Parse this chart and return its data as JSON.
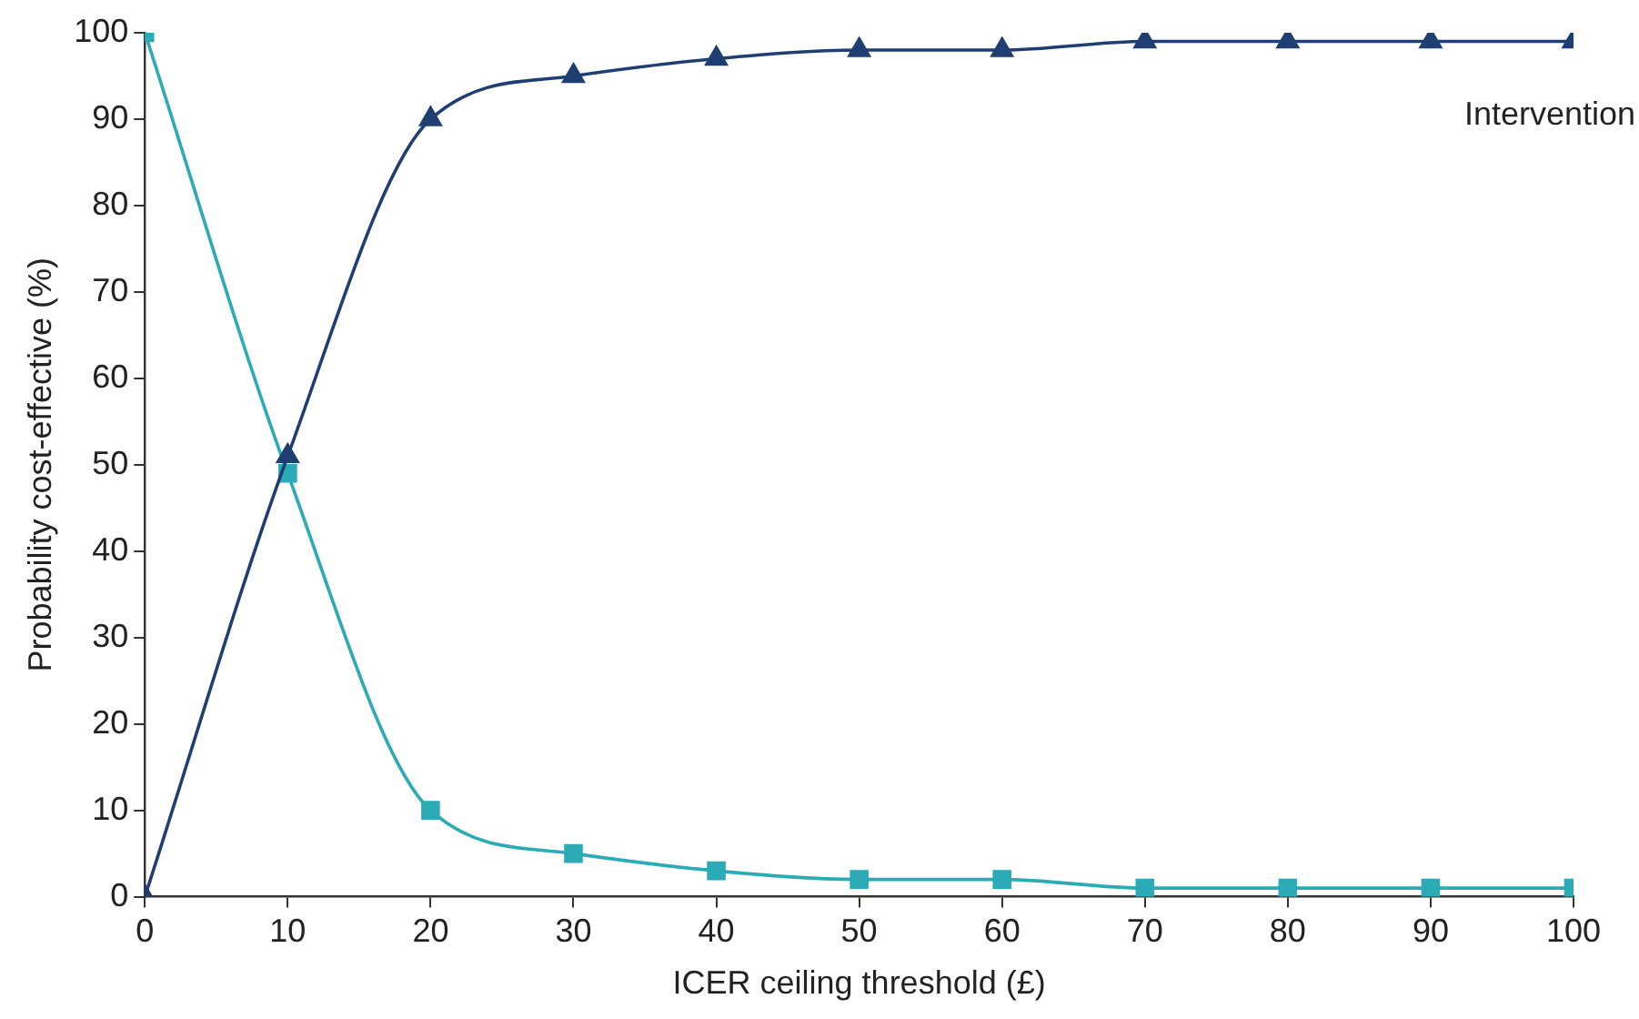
{
  "chart_data": {
    "type": "line",
    "xlabel": "ICER ceiling threshold (£)",
    "ylabel": "Probability cost-effective (%)",
    "x": [
      0,
      10,
      20,
      30,
      40,
      50,
      60,
      70,
      80,
      90,
      100
    ],
    "series": [
      {
        "name": "Intervention",
        "color": "#1f3f73",
        "marker": "triangle",
        "values": [
          0,
          51,
          90,
          95,
          97,
          98,
          98,
          99,
          99,
          99,
          99
        ]
      },
      {
        "color": "#2aabb5",
        "marker": "square",
        "values": [
          100,
          49,
          10,
          5,
          3,
          2,
          2,
          1,
          1,
          1,
          1
        ]
      }
    ],
    "xlim": [
      0,
      100
    ],
    "xticks": [
      0,
      10,
      20,
      30,
      40,
      50,
      60,
      70,
      80,
      90,
      100
    ],
    "ylim": [
      0,
      100
    ],
    "yticks": [
      0,
      10,
      20,
      30,
      40,
      50,
      60,
      70,
      80,
      90,
      100
    ],
    "grid": false,
    "legend": false,
    "line_style": "solid"
  }
}
